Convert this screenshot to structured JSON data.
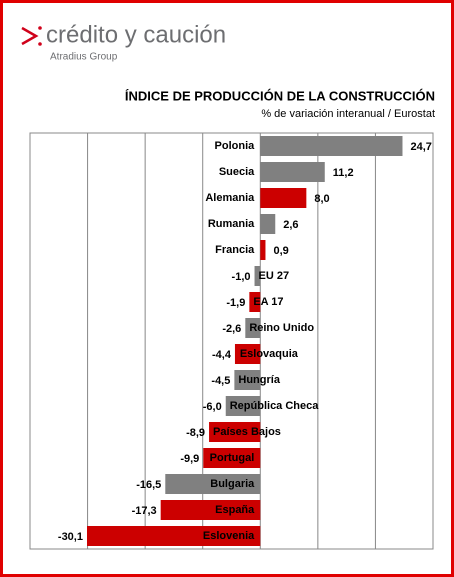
{
  "brand": "crédito y caución",
  "brand_sub": "Atradius Group",
  "chart_data": {
    "type": "hbar",
    "title": "ÍNDICE DE PRODUCCIÓN DE LA CONSTRUCCIÓN",
    "subtitle": "% de variación interanual / Eurostat",
    "categories": [
      "Polonia",
      "Suecia",
      "Alemania",
      "Rumania",
      "Francia",
      "EU 27",
      "EA 17",
      "Reino Unido",
      "Eslovaquia",
      "Hungría",
      "República Checa",
      "Países Bajos",
      "Portugal",
      "Bulgaria",
      "España",
      "Eslovenia"
    ],
    "values": [
      24.7,
      11.2,
      8,
      2.6,
      0.9,
      -1,
      -1.9,
      -2.6,
      -4.4,
      -4.5,
      -6,
      -8.9,
      -9.9,
      -16.5,
      -17.3,
      -30.1
    ],
    "value_labels": [
      "24,7",
      "11,2",
      "8,0",
      "2,6",
      "0,9",
      "-1,0",
      "-1,9",
      "-2,6",
      "-4,4",
      "-4,5",
      "-6,0",
      "-8,9",
      "-9,9",
      "-16,5",
      "-17,3",
      "-30,1"
    ],
    "colors": [
      "#808080",
      "#808080",
      "#cc0000",
      "#808080",
      "#cc0000",
      "#808080",
      "#cc0000",
      "#808080",
      "#cc0000",
      "#808080",
      "#808080",
      "#cc0000",
      "#cc0000",
      "#808080",
      "#cc0000",
      "#cc0000"
    ],
    "xlim": [
      -40,
      30
    ],
    "xticks": [
      -40,
      -30,
      -20,
      -10,
      0,
      10,
      20,
      30
    ],
    "grid": true
  }
}
